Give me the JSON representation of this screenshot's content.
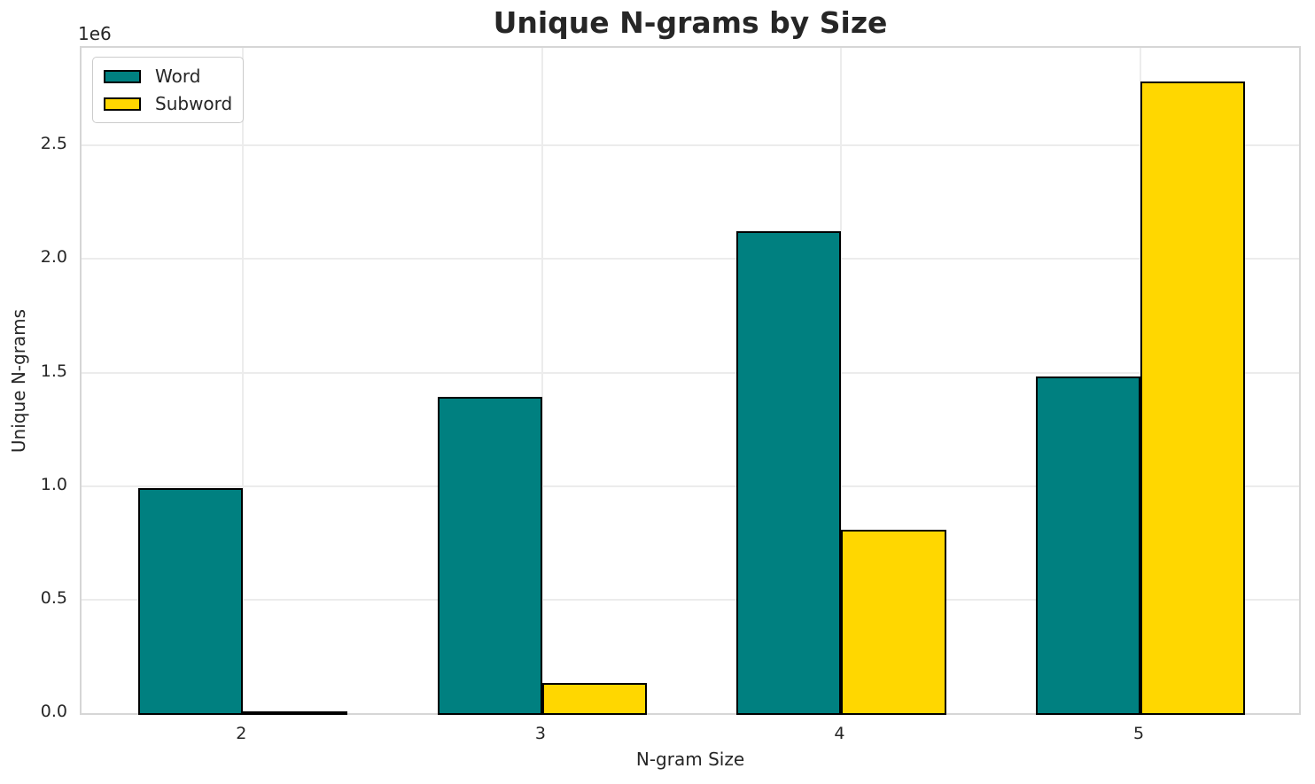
{
  "title": "Unique N-grams by Size",
  "legend": {
    "items": [
      {
        "label": "Word",
        "color": "#008080"
      },
      {
        "label": "Subword",
        "color": "#FFD700"
      }
    ]
  },
  "chart_data": {
    "type": "bar",
    "title": "Unique N-grams by Size",
    "xlabel": "N-gram Size",
    "ylabel": "Unique N-grams",
    "offset_text": "1e6",
    "categories": [
      "2",
      "3",
      "4",
      "5"
    ],
    "series": [
      {
        "name": "Word",
        "color": "#008080",
        "values": [
          1000000,
          1400000,
          2130000,
          1490000
        ]
      },
      {
        "name": "Subword",
        "color": "#FFD700",
        "values": [
          15000,
          140000,
          815000,
          2790000
        ]
      }
    ],
    "ylim": [
      0,
      2930000
    ],
    "yticks": [
      0,
      500000,
      1000000,
      1500000,
      2000000,
      2500000
    ],
    "ytick_labels": [
      "0.0",
      "0.5",
      "1.0",
      "1.5",
      "2.0",
      "2.5"
    ],
    "xlim": [
      -0.54,
      3.53
    ],
    "bar_width": 0.35,
    "grid": true,
    "edge_color": "#000000",
    "legend_position": "upper left"
  }
}
